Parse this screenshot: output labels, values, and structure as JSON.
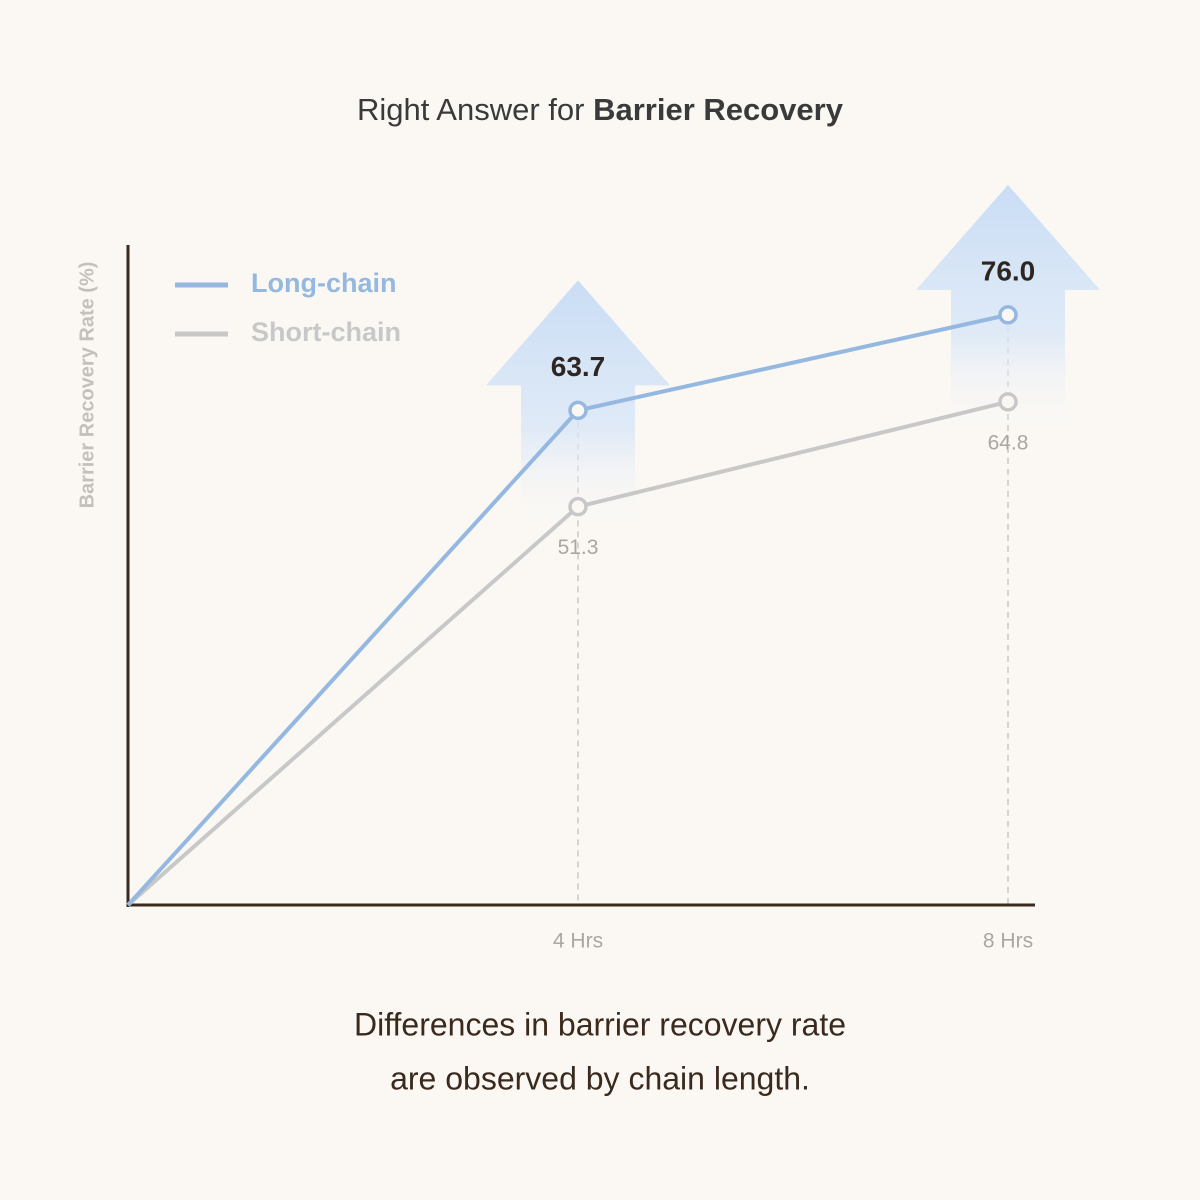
{
  "chart_data": {
    "type": "line",
    "title": "Right Answer for",
    "title_emphasis": "Barrier Recovery",
    "y_label": "Barrier Recovery Rate (%)",
    "categories": [
      null,
      "4 Hrs",
      "8 Hrs"
    ],
    "ylim": [
      0,
      85
    ],
    "series": [
      {
        "name": "Long-chain",
        "color": "#94b8e0",
        "values": [
          0,
          63.7,
          76.0
        ],
        "value_labels": [
          null,
          "63.7",
          "76.0"
        ]
      },
      {
        "name": "Short-chain",
        "color": "#c8c8c8",
        "values": [
          0,
          51.3,
          64.8
        ],
        "value_labels": [
          null,
          "51.3",
          "64.8"
        ]
      }
    ],
    "caption": [
      "Differences in barrier recovery rate",
      "are observed by chain length."
    ]
  }
}
